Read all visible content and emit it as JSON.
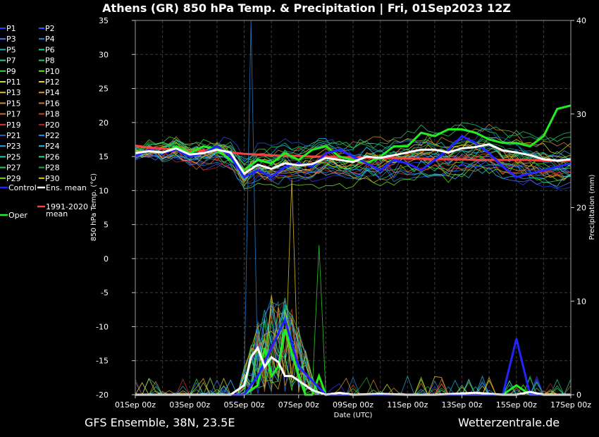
{
  "title": "Athens  (GR)  850 hPa Temp. & Precipitation | Fri, 01Sep2023 12Z",
  "footer_left": "GFS Ensemble, 38N, 23.5E",
  "footer_right": "Wetterzentrale.de",
  "colors": {
    "background": "#000000",
    "grid": "#3c3c3c",
    "control": "#2323ff",
    "ens_mean": "#ffffff",
    "climate_mean": "#ff4040",
    "oper": "#22ee22"
  },
  "chart_data": {
    "type": "line",
    "xlabel": "Date (UTC)",
    "ylabel_left": "850 hPa Temp. (°C)",
    "ylabel_right": "Precipitation (mm)",
    "ylim_left": [
      -20,
      35
    ],
    "ylim_right": [
      0,
      40
    ],
    "yticks_left": [
      "35",
      "30",
      "25",
      "20",
      "15",
      "10",
      "5",
      "0",
      "-5",
      "-10",
      "-15",
      "-20"
    ],
    "yticks_right": [
      "40",
      "30",
      "20",
      "10",
      "0"
    ],
    "xlim_hours": [
      0,
      384
    ],
    "xtick_labels": [
      "01Sep 00z",
      "03Sep 00z",
      "05Sep 00z",
      "07Sep 00z",
      "09Sep 00z",
      "11Sep 00z",
      "13Sep 00z",
      "15Sep 00z",
      "17Sep 00z"
    ],
    "grid": true,
    "legend_position": "left",
    "legend": [
      {
        "name": "P1",
        "color": "#3333ff"
      },
      {
        "name": "P2",
        "color": "#3355ff"
      },
      {
        "name": "P3",
        "color": "#4477ff"
      },
      {
        "name": "P4",
        "color": "#2288dd"
      },
      {
        "name": "P5",
        "color": "#22aacc"
      },
      {
        "name": "P6",
        "color": "#22ccaa"
      },
      {
        "name": "P7",
        "color": "#22cc88"
      },
      {
        "name": "P8",
        "color": "#22cc66"
      },
      {
        "name": "P9",
        "color": "#33dd33"
      },
      {
        "name": "P10",
        "color": "#55ee22"
      },
      {
        "name": "P11",
        "color": "#ccdd22"
      },
      {
        "name": "P12",
        "color": "#eecc22"
      },
      {
        "name": "P13",
        "color": "#ddbb22"
      },
      {
        "name": "P14",
        "color": "#dd9922"
      },
      {
        "name": "P15",
        "color": "#cc8833"
      },
      {
        "name": "P16",
        "color": "#cc7722"
      },
      {
        "name": "P17",
        "color": "#cc6633"
      },
      {
        "name": "P18",
        "color": "#cc4422"
      },
      {
        "name": "P19",
        "color": "#dd3333"
      },
      {
        "name": "P20",
        "color": "#bb2222"
      },
      {
        "name": "P21",
        "color": "#2255cc"
      },
      {
        "name": "P22",
        "color": "#2288ff"
      },
      {
        "name": "P23",
        "color": "#22aadd"
      },
      {
        "name": "P24",
        "color": "#22bbee"
      },
      {
        "name": "P25",
        "color": "#22ccbb"
      },
      {
        "name": "P26",
        "color": "#22dd99"
      },
      {
        "name": "P27",
        "color": "#22cc66"
      },
      {
        "name": "P28",
        "color": "#22aa44"
      },
      {
        "name": "P29",
        "color": "#66dd22"
      },
      {
        "name": "P30",
        "color": "#ddcc22"
      },
      {
        "name": "Control",
        "color": "#2323ff"
      },
      {
        "name": "Ens. mean",
        "color": "#ffffff"
      },
      {
        "name": "1991-2020 mean",
        "color": "#ff4040"
      },
      {
        "name": "Oper",
        "color": "#22ee22"
      }
    ],
    "series_temp": [
      {
        "name": "Control",
        "x": [
          0,
          12,
          24,
          36,
          48,
          60,
          72,
          84,
          96,
          108,
          120,
          132,
          144,
          156,
          168,
          180,
          192,
          204,
          216,
          228,
          240,
          252,
          264,
          276,
          288,
          300,
          312,
          324,
          336,
          348,
          360,
          372,
          384
        ],
        "values": [
          15,
          16,
          15.5,
          16,
          15,
          15.5,
          16.5,
          15,
          12,
          13,
          12,
          13.5,
          14,
          13.5,
          15.5,
          16,
          15,
          14,
          13,
          14.5,
          14,
          13,
          14.5,
          16,
          18,
          17,
          15.5,
          13.5,
          12,
          12.5,
          13,
          13.5,
          14
        ]
      },
      {
        "name": "Ens. mean",
        "x": [
          0,
          12,
          24,
          36,
          48,
          60,
          72,
          84,
          96,
          108,
          120,
          132,
          144,
          156,
          168,
          180,
          192,
          204,
          216,
          228,
          240,
          252,
          264,
          276,
          288,
          300,
          312,
          324,
          336,
          348,
          360,
          372,
          384
        ],
        "values": [
          15.5,
          15.8,
          15.6,
          16.2,
          15.3,
          15.5,
          16,
          15.6,
          12.5,
          13.8,
          13.2,
          14,
          13.7,
          13.9,
          14.8,
          14.5,
          14.2,
          15,
          14.8,
          15.2,
          15.6,
          16,
          16,
          15.6,
          16.2,
          16.4,
          16.8,
          15.9,
          15.6,
          15.2,
          14.6,
          14.4,
          14.6
        ]
      },
      {
        "name": "1991-2020 mean",
        "x": [
          0,
          12,
          24,
          36,
          48,
          60,
          72,
          84,
          96,
          108,
          120,
          132,
          144,
          156,
          168,
          180,
          192,
          204,
          216,
          228,
          240,
          252,
          264,
          276,
          288,
          300,
          312,
          324,
          336,
          348,
          360,
          372,
          384
        ],
        "values": [
          16.6,
          16.3,
          16.2,
          16,
          15.8,
          15.9,
          15.8,
          15.6,
          15.4,
          15.3,
          15.2,
          15.1,
          15.1,
          15,
          15,
          14.9,
          14.9,
          14.8,
          14.8,
          14.8,
          14.7,
          14.7,
          14.6,
          14.6,
          14.6,
          14.5,
          14.5,
          14.5,
          14.5,
          14.5,
          14.4,
          14.4,
          14.4
        ]
      },
      {
        "name": "Oper",
        "x": [
          0,
          12,
          24,
          36,
          48,
          60,
          72,
          84,
          96,
          108,
          120,
          132,
          144,
          156,
          168,
          180,
          192,
          204,
          216,
          228,
          240,
          252,
          264,
          276,
          288,
          300,
          312,
          324,
          336,
          348,
          360,
          372,
          384
        ],
        "values": [
          15,
          16,
          15.5,
          16.5,
          15.5,
          16.5,
          16,
          14.5,
          13,
          14.5,
          14,
          15.5,
          14.5,
          16,
          16.5,
          15,
          14.5,
          14,
          15,
          16.5,
          16.5,
          18.5,
          18,
          19,
          19,
          18.5,
          17.5,
          17,
          17,
          16.5,
          18,
          22,
          22.5
        ]
      }
    ],
    "series_precip": [
      {
        "name": "Control",
        "x": [
          0,
          84,
          96,
          108,
          120,
          132,
          144,
          168,
          192,
          216,
          240,
          264,
          312,
          324,
          336,
          348,
          384
        ],
        "values": [
          0,
          0,
          0,
          2,
          5,
          8,
          3,
          0,
          0,
          0,
          0,
          0,
          0,
          0,
          6,
          0,
          0
        ]
      },
      {
        "name": "Ens. mean",
        "x": [
          0,
          84,
          90,
          96,
          102,
          108,
          114,
          120,
          126,
          132,
          138,
          144,
          150,
          156,
          168,
          180,
          192,
          216,
          240,
          264,
          300,
          324,
          336,
          348,
          360,
          384
        ],
        "values": [
          0,
          0,
          0.5,
          1,
          4,
          5,
          3,
          4,
          3.5,
          2,
          2,
          1.5,
          1,
          0.5,
          0,
          0.2,
          0,
          0.1,
          0,
          0,
          0.2,
          0,
          0,
          0.3,
          0,
          0
        ]
      },
      {
        "name": "Oper",
        "x": [
          0,
          84,
          96,
          108,
          114,
          120,
          126,
          132,
          144,
          150,
          156,
          162,
          168,
          180,
          192,
          216,
          240,
          264,
          300,
          324,
          336,
          348,
          360,
          384
        ],
        "values": [
          0,
          0,
          0,
          1,
          5,
          2,
          3,
          7,
          2,
          0,
          0,
          2,
          0,
          0,
          0,
          0,
          0,
          0,
          0,
          0,
          1,
          0,
          0,
          0
        ]
      }
    ]
  }
}
